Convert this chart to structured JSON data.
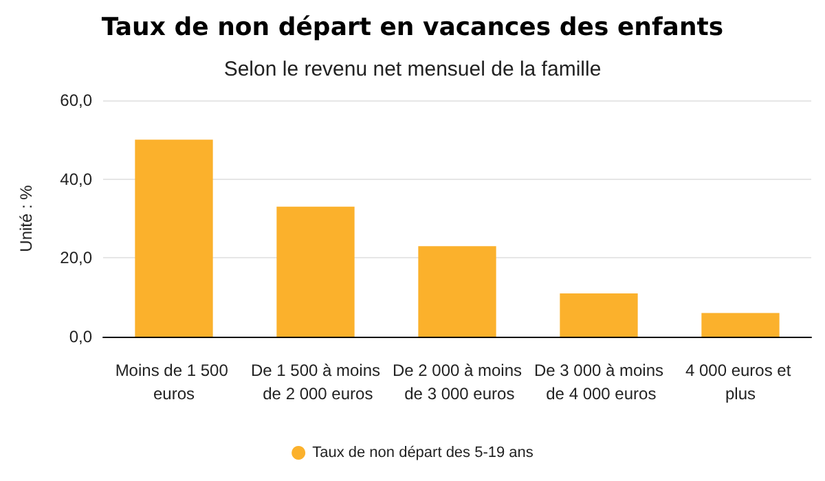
{
  "chart_data": {
    "type": "bar",
    "title": "Taux de non départ en vacances des enfants",
    "subtitle": "Selon le revenu net mensuel de la famille",
    "ylabel": "Unité : %",
    "categories": [
      "Moins de 1 500 euros",
      "De 1 500 à moins de 2 000 euros",
      "De 2 000 à moins de 3 000 euros",
      "De 3 000 à moins de 4 000 euros",
      "4 000 euros et plus"
    ],
    "series": [
      {
        "name": "Taux de non départ des 5-19 ans",
        "color": "#fbb12c",
        "values": [
          50,
          33,
          23,
          11,
          6
        ]
      }
    ],
    "ylim": [
      0,
      60
    ],
    "yticks": [
      {
        "value": 0,
        "label": "0,0"
      },
      {
        "value": 20,
        "label": "20,0"
      },
      {
        "value": 40,
        "label": "40,0"
      },
      {
        "value": 60,
        "label": "60,0"
      }
    ],
    "grid": "y",
    "legend": "bottom"
  }
}
